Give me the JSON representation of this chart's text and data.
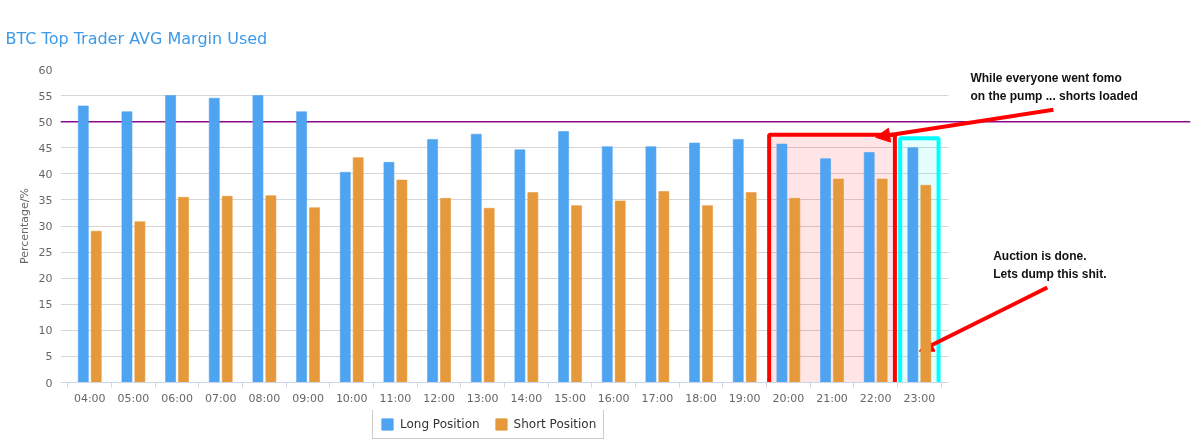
{
  "chart_data": {
    "type": "bar",
    "title": "BTC Top Trader AVG Margin Used",
    "ylabel": "Percentage/%",
    "categories": [
      "04:00",
      "05:00",
      "06:00",
      "07:00",
      "08:00",
      "09:00",
      "10:00",
      "11:00",
      "12:00",
      "13:00",
      "14:00",
      "15:00",
      "16:00",
      "17:00",
      "18:00",
      "19:00",
      "20:00",
      "21:00",
      "22:00",
      "23:00"
    ],
    "series": [
      {
        "name": "Long Position",
        "color": "#4fa4f1",
        "values": [
          53.0,
          51.9,
          55.0,
          54.5,
          55.0,
          51.9,
          40.3,
          42.2,
          46.6,
          47.6,
          44.6,
          48.1,
          45.2,
          45.2,
          45.9,
          46.6,
          45.7,
          42.9,
          44.1,
          45.0
        ]
      },
      {
        "name": "Short Position",
        "color": "#e6993b",
        "values": [
          29.0,
          30.8,
          35.5,
          35.7,
          35.8,
          33.5,
          43.1,
          38.8,
          35.3,
          33.4,
          36.4,
          33.9,
          34.8,
          36.6,
          33.9,
          36.4,
          35.3,
          39.0,
          39.0,
          37.8
        ]
      }
    ],
    "ylim": [
      0,
      60
    ],
    "yticks": [
      0,
      5,
      10,
      15,
      20,
      25,
      30,
      35,
      40,
      45,
      50,
      55,
      60
    ],
    "grid": "y",
    "legend": "bottom",
    "ref_lines": [
      {
        "axis": "y",
        "value": 50,
        "color": "#8b0a8b"
      }
    ],
    "bands": [
      {
        "axis": "x",
        "from": "20:00",
        "to": "22:00",
        "color": "#ff0000"
      },
      {
        "axis": "x",
        "from": "23:00",
        "to": "23:00",
        "color": "#00ffff"
      }
    ],
    "annotations": [
      {
        "text": "While everyone went fomo\non the pump ... shorts loaded",
        "x": "22:00",
        "y": 47
      },
      {
        "text": "Auction is done.\nLets dump this shit.",
        "x": "23:00",
        "y": 6
      }
    ]
  }
}
